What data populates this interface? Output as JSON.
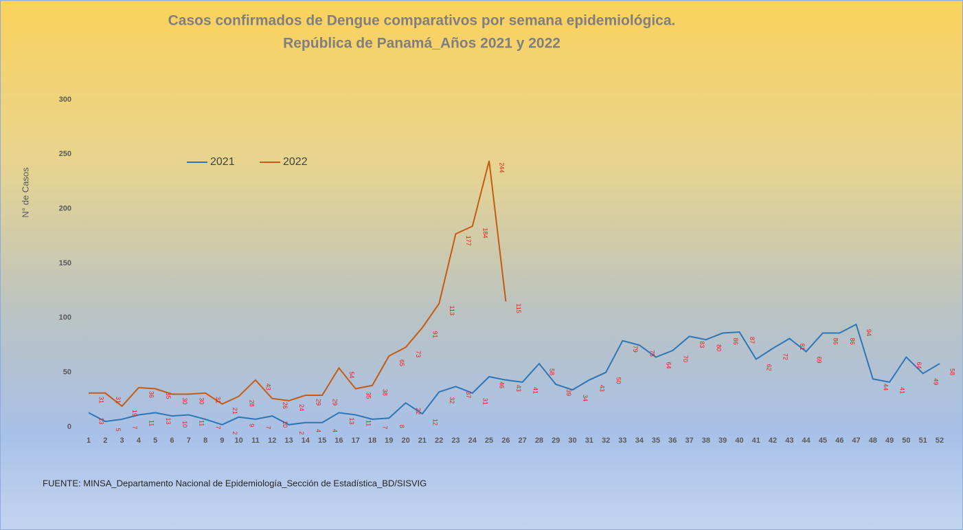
{
  "chart_data": {
    "type": "line",
    "title": [
      "Casos confirmados de Dengue comparativos por semana epidemiológica.",
      "República de Panamá_Años 2021 y 2022"
    ],
    "y_label": "N° de Casos",
    "source": "FUENTE: MINSA_Departamento Nacional de Epidemiología_Sección de Estadística_BD/SISVIG",
    "categories": [
      "1",
      "2",
      "3",
      "4",
      "5",
      "6",
      "7",
      "8",
      "9",
      "10",
      "11",
      "12",
      "13",
      "14",
      "15",
      "16",
      "17",
      "18",
      "19",
      "20",
      "21",
      "22",
      "23",
      "24",
      "25",
      "26",
      "27",
      "28",
      "29",
      "30",
      "31",
      "32",
      "33",
      "34",
      "35",
      "36",
      "37",
      "38",
      "39",
      "40",
      "41",
      "42",
      "43",
      "44",
      "45",
      "46",
      "47",
      "48",
      "49",
      "50",
      "51",
      "52"
    ],
    "series": [
      {
        "name": "2021",
        "color": "#2e75b6",
        "values": [
          13,
          5,
          7,
          11,
          13,
          10,
          11,
          7,
          2,
          9,
          7,
          10,
          2,
          4,
          4,
          13,
          11,
          7,
          8,
          22,
          12,
          32,
          37,
          31,
          46,
          43,
          41,
          58,
          39,
          34,
          43,
          50,
          79,
          75,
          64,
          70,
          83,
          80,
          86,
          87,
          62,
          72,
          81,
          69,
          86,
          86,
          94,
          44,
          41,
          64,
          49,
          58
        ]
      },
      {
        "name": "2022",
        "color": "#c55a11",
        "values": [
          31,
          31,
          19,
          36,
          35,
          30,
          30,
          31,
          21,
          28,
          43,
          26,
          24,
          29,
          29,
          54,
          35,
          38,
          65,
          73,
          91,
          113,
          177,
          184,
          244,
          115,
          null,
          null,
          null,
          null,
          null,
          null,
          null,
          null,
          null,
          null,
          null,
          null,
          null,
          null,
          null,
          null,
          null,
          null,
          null,
          null,
          null,
          null,
          null,
          null,
          null,
          null
        ]
      }
    ],
    "ylim": [
      0,
      300
    ],
    "yticks": [
      0,
      50,
      100,
      150,
      200,
      250,
      300
    ],
    "grid": false,
    "legend": "upper-left",
    "value_label_color": "#e8201a"
  }
}
